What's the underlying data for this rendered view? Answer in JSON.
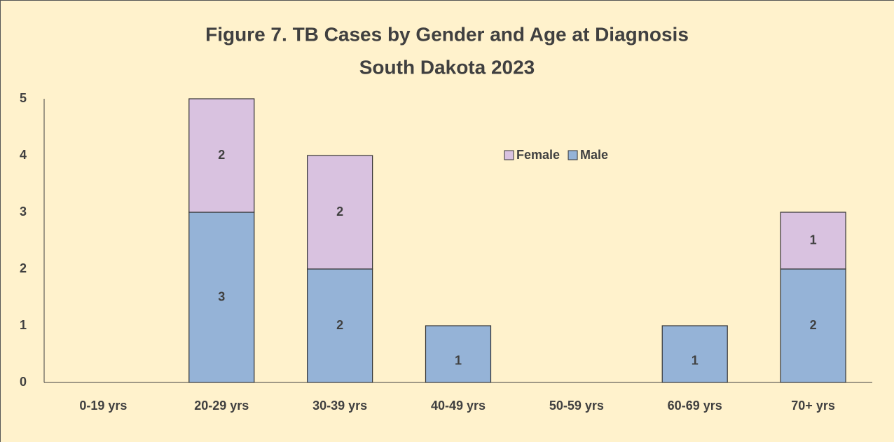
{
  "chart_data": {
    "type": "stacked_bar",
    "title": "Figure 7.  TB Cases by Gender and Age at Diagnosis",
    "subtitle": "South Dakota 2023",
    "categories": [
      "0-19 yrs",
      "20-29 yrs",
      "30-39 yrs",
      "40-49 yrs",
      "50-59 yrs",
      "60-69 yrs",
      "70+ yrs"
    ],
    "series": [
      {
        "name": "Male",
        "color": "#95b3d7",
        "values": [
          0,
          3,
          2,
          1,
          0,
          1,
          2
        ]
      },
      {
        "name": "Female",
        "color": "#d9c2e0",
        "values": [
          0,
          2,
          2,
          0,
          0,
          0,
          1
        ]
      }
    ],
    "ylim": [
      0,
      5
    ],
    "yticks": [
      0,
      1,
      2,
      3,
      4,
      5
    ],
    "grid": false,
    "legend": "top-right"
  }
}
